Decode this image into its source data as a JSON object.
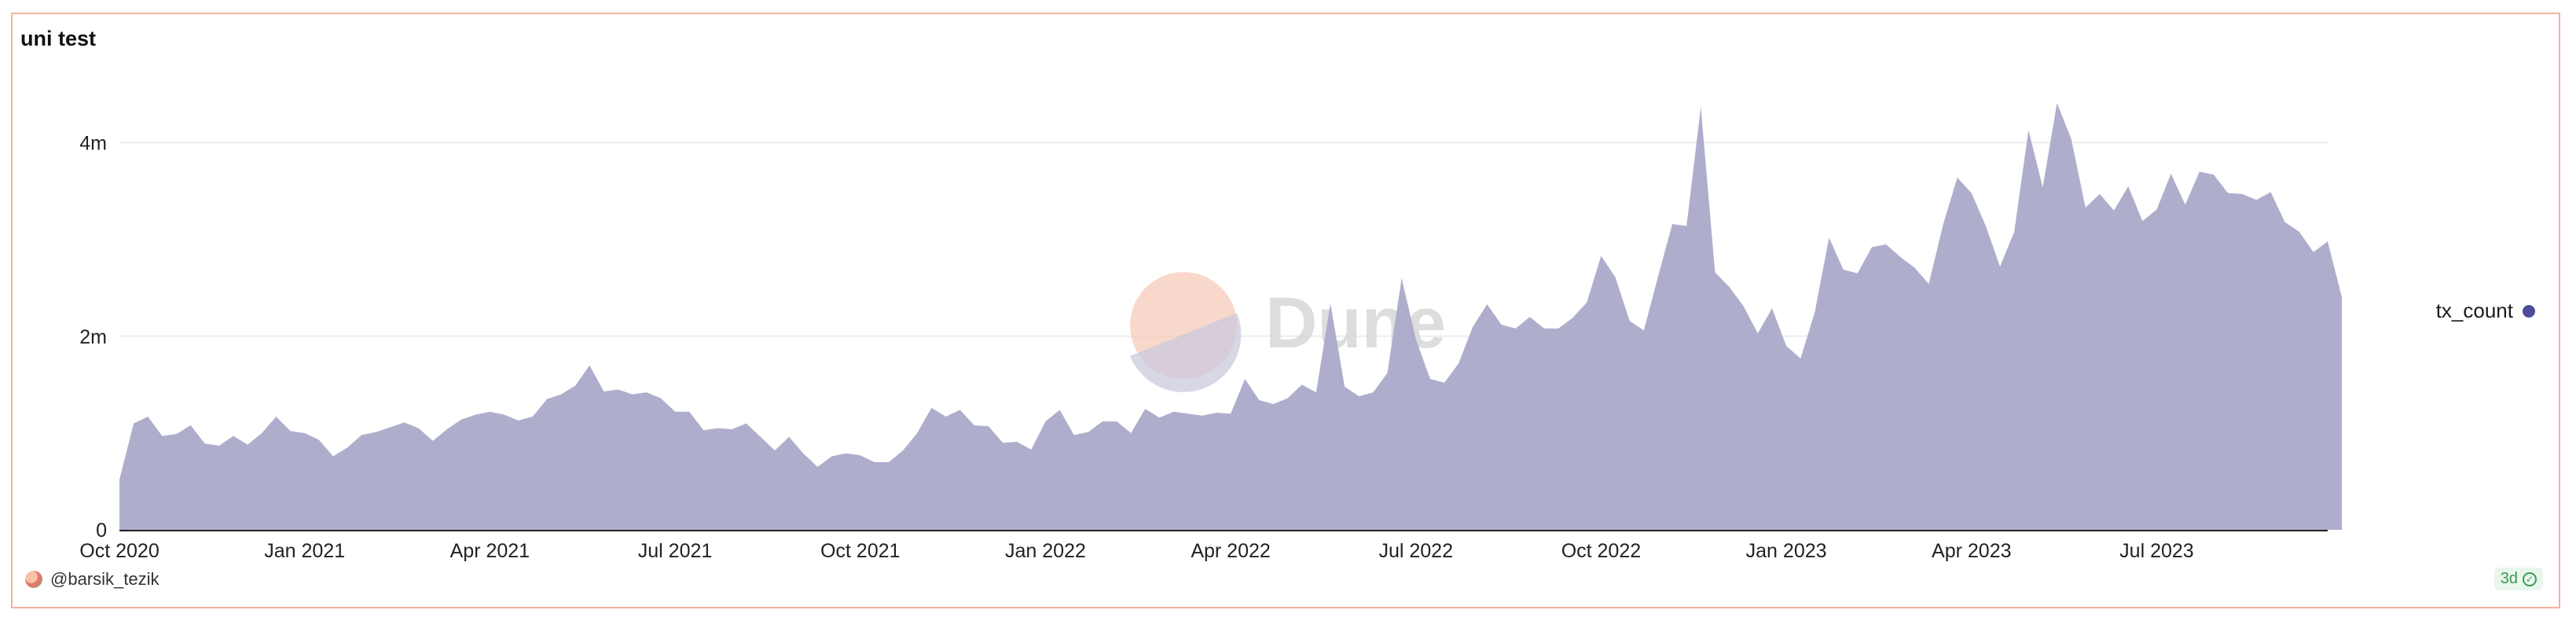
{
  "colors": {
    "area_fill": "#aaaac9",
    "legend_dot": "#4c4c99",
    "card_border": "#f3b2a0",
    "grid": "#ededed",
    "axis": "#222222"
  },
  "watermark": {
    "text": "Dune"
  },
  "footer": {
    "username": "@barsik_tezik",
    "badge_text": "3d",
    "badge_icon": "check-circle-icon"
  },
  "chart_data": {
    "type": "area",
    "title": "uni test",
    "xlabel": "",
    "ylabel": "",
    "ylim": [
      0,
      4500000
    ],
    "y_ticks": [
      {
        "value": 0,
        "label": "0"
      },
      {
        "value": 2000000,
        "label": "2m"
      },
      {
        "value": 4000000,
        "label": "4m"
      }
    ],
    "x_ticks": [
      {
        "week": 0,
        "label": "Oct 2020"
      },
      {
        "week": 13,
        "label": "Jan 2021"
      },
      {
        "week": 26,
        "label": "Apr 2021"
      },
      {
        "week": 39,
        "label": "Jul 2021"
      },
      {
        "week": 52,
        "label": "Oct 2021"
      },
      {
        "week": 65,
        "label": "Jan 2022"
      },
      {
        "week": 78,
        "label": "Apr 2022"
      },
      {
        "week": 91,
        "label": "Jul 2022"
      },
      {
        "week": 104,
        "label": "Oct 2022"
      },
      {
        "week": 117,
        "label": "Jan 2023"
      },
      {
        "week": 130,
        "label": "Apr 2023"
      },
      {
        "week": 143,
        "label": "Jul 2023"
      }
    ],
    "x_max": 155,
    "grid": true,
    "legend_position": "right",
    "series": [
      {
        "name": "tx_count",
        "values": [
          520000,
          1100000,
          1170000,
          970000,
          990000,
          1080000,
          890000,
          870000,
          970000,
          880000,
          1000000,
          1170000,
          1020000,
          1000000,
          930000,
          760000,
          850000,
          980000,
          1010000,
          1060000,
          1110000,
          1050000,
          920000,
          1040000,
          1140000,
          1190000,
          1220000,
          1190000,
          1130000,
          1170000,
          1350000,
          1400000,
          1490000,
          1700000,
          1430000,
          1450000,
          1400000,
          1420000,
          1360000,
          1220000,
          1220000,
          1030000,
          1050000,
          1040000,
          1100000,
          960000,
          820000,
          960000,
          790000,
          650000,
          760000,
          790000,
          770000,
          700000,
          700000,
          820000,
          1000000,
          1260000,
          1170000,
          1240000,
          1080000,
          1070000,
          900000,
          910000,
          830000,
          1120000,
          1240000,
          980000,
          1010000,
          1120000,
          1120000,
          1000000,
          1250000,
          1160000,
          1220000,
          1200000,
          1180000,
          1210000,
          1200000,
          1560000,
          1340000,
          1300000,
          1360000,
          1500000,
          1420000,
          2340000,
          1480000,
          1380000,
          1420000,
          1620000,
          2600000,
          1970000,
          1560000,
          1520000,
          1720000,
          2100000,
          2330000,
          2120000,
          2080000,
          2200000,
          2080000,
          2080000,
          2190000,
          2350000,
          2830000,
          2610000,
          2160000,
          2060000,
          2620000,
          3160000,
          3140000,
          4370000,
          2660000,
          2510000,
          2310000,
          2030000,
          2290000,
          1900000,
          1770000,
          2250000,
          3020000,
          2690000,
          2650000,
          2920000,
          2950000,
          2820000,
          2710000,
          2540000,
          3150000,
          3640000,
          3480000,
          3140000,
          2720000,
          3080000,
          4130000,
          3540000,
          4410000,
          4040000,
          3330000,
          3470000,
          3300000,
          3550000,
          3190000,
          3310000,
          3680000,
          3360000,
          3700000,
          3670000,
          3480000,
          3470000,
          3410000,
          3490000,
          3180000,
          3080000,
          2870000,
          2980000,
          2400000
        ]
      }
    ]
  }
}
